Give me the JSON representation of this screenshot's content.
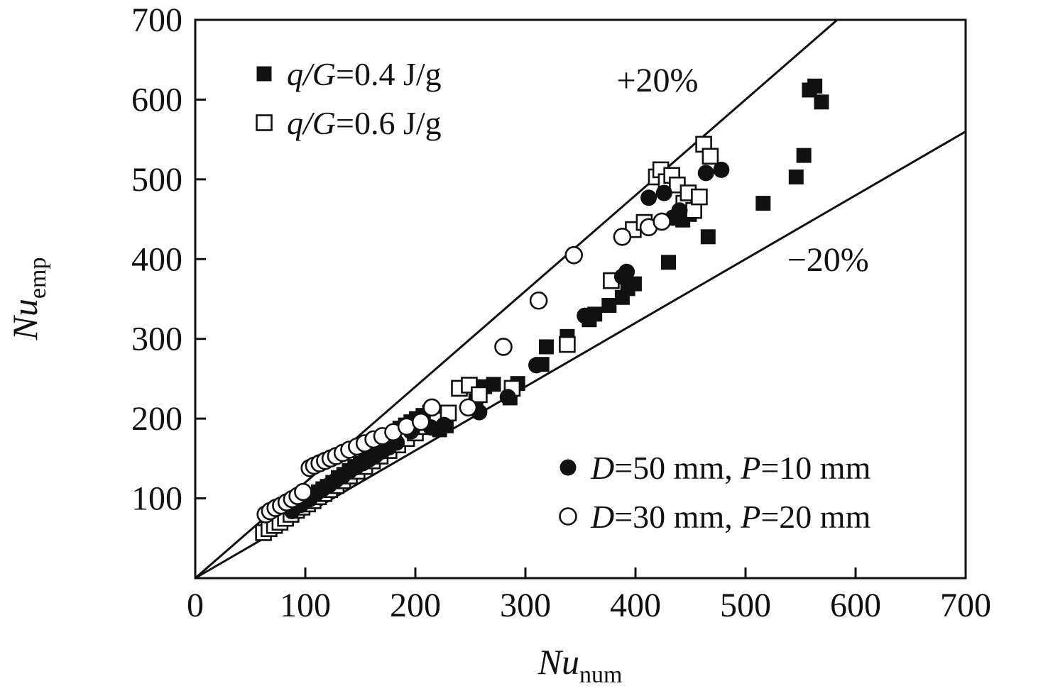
{
  "figure": {
    "background": "#ffffff"
  },
  "colors": {
    "ink": "#111111",
    "paper": "#ffffff"
  },
  "chart_data": {
    "type": "scatter",
    "title": "",
    "xlabel_main": "Nu",
    "xlabel_sub": "num",
    "ylabel_main": "Nu",
    "ylabel_sub": "emp",
    "xlim": [
      0,
      700
    ],
    "ylim": [
      0,
      700
    ],
    "xticks": [
      0,
      100,
      200,
      300,
      400,
      500,
      600,
      700
    ],
    "yticks": [
      100,
      200,
      300,
      400,
      500,
      600,
      700
    ],
    "grid": false,
    "frame": "box",
    "reference_lines": [
      {
        "label": "+20%",
        "slope": 1.2,
        "label_x": 420,
        "label_y": 610
      },
      {
        "label": "−20%",
        "slope": 0.8,
        "label_x": 575,
        "label_y": 385
      }
    ],
    "series": [
      {
        "name": "q/G=0.4 J/g",
        "marker": "square",
        "fill": "filled",
        "points": [
          [
            78,
            80
          ],
          [
            85,
            86
          ],
          [
            90,
            90
          ],
          [
            95,
            93
          ],
          [
            100,
            97
          ],
          [
            104,
            100
          ],
          [
            108,
            104
          ],
          [
            112,
            108
          ],
          [
            116,
            112
          ],
          [
            120,
            115
          ],
          [
            125,
            120
          ],
          [
            130,
            126
          ],
          [
            135,
            130
          ],
          [
            140,
            135
          ],
          [
            145,
            140
          ],
          [
            150,
            144
          ],
          [
            155,
            148
          ],
          [
            159,
            152
          ],
          [
            163,
            156
          ],
          [
            167,
            160
          ],
          [
            171,
            164
          ],
          [
            176,
            168
          ],
          [
            181,
            172
          ],
          [
            186,
            188
          ],
          [
            191,
            192
          ],
          [
            196,
            196
          ],
          [
            201,
            200
          ],
          [
            207,
            204
          ],
          [
            213,
            208
          ],
          [
            222,
            186
          ],
          [
            228,
            191
          ],
          [
            255,
            222
          ],
          [
            263,
            240
          ],
          [
            271,
            243
          ],
          [
            286,
            226
          ],
          [
            293,
            244
          ],
          [
            315,
            268
          ],
          [
            319,
            290
          ],
          [
            338,
            303
          ],
          [
            358,
            324
          ],
          [
            363,
            331
          ],
          [
            376,
            342
          ],
          [
            388,
            352
          ],
          [
            393,
            363
          ],
          [
            399,
            369
          ],
          [
            430,
            396
          ],
          [
            443,
            449
          ],
          [
            449,
            456
          ],
          [
            466,
            428
          ],
          [
            516,
            470
          ],
          [
            546,
            503
          ],
          [
            553,
            530
          ],
          [
            558,
            612
          ],
          [
            563,
            617
          ],
          [
            569,
            597
          ]
        ]
      },
      {
        "name": "q/G=0.6 J/g",
        "marker": "square",
        "fill": "open",
        "points": [
          [
            62,
            57
          ],
          [
            67,
            62
          ],
          [
            72,
            66
          ],
          [
            77,
            70
          ],
          [
            82,
            75
          ],
          [
            87,
            80
          ],
          [
            92,
            85
          ],
          [
            97,
            89
          ],
          [
            102,
            93
          ],
          [
            107,
            97
          ],
          [
            112,
            102
          ],
          [
            117,
            106
          ],
          [
            122,
            111
          ],
          [
            128,
            116
          ],
          [
            134,
            122
          ],
          [
            140,
            128
          ],
          [
            147,
            134
          ],
          [
            154,
            140
          ],
          [
            161,
            147
          ],
          [
            168,
            153
          ],
          [
            176,
            160
          ],
          [
            184,
            167
          ],
          [
            192,
            175
          ],
          [
            200,
            182
          ],
          [
            210,
            190
          ],
          [
            220,
            198
          ],
          [
            230,
            207
          ],
          [
            240,
            238
          ],
          [
            249,
            242
          ],
          [
            258,
            230
          ],
          [
            288,
            238
          ],
          [
            338,
            293
          ],
          [
            378,
            373
          ],
          [
            398,
            437
          ],
          [
            408,
            446
          ],
          [
            419,
            503
          ],
          [
            423,
            512
          ],
          [
            428,
            497
          ],
          [
            433,
            505
          ],
          [
            438,
            493
          ],
          [
            444,
            470
          ],
          [
            448,
            483
          ],
          [
            453,
            461
          ],
          [
            458,
            478
          ],
          [
            462,
            544
          ],
          [
            468,
            529
          ]
        ]
      },
      {
        "name": "D=50 mm, P=10 mm",
        "marker": "circle",
        "fill": "filled",
        "points": [
          [
            88,
            84
          ],
          [
            96,
            92
          ],
          [
            104,
            99
          ],
          [
            110,
            106
          ],
          [
            116,
            112
          ],
          [
            122,
            117
          ],
          [
            128,
            123
          ],
          [
            134,
            128
          ],
          [
            140,
            134
          ],
          [
            146,
            139
          ],
          [
            152,
            144
          ],
          [
            158,
            149
          ],
          [
            164,
            154
          ],
          [
            170,
            159
          ],
          [
            176,
            164
          ],
          [
            183,
            170
          ],
          [
            196,
            184
          ],
          [
            214,
            189
          ],
          [
            226,
            192
          ],
          [
            258,
            208
          ],
          [
            284,
            227
          ],
          [
            310,
            267
          ],
          [
            354,
            329
          ],
          [
            388,
            378
          ],
          [
            392,
            384
          ],
          [
            412,
            477
          ],
          [
            426,
            483
          ],
          [
            434,
            452
          ],
          [
            440,
            461
          ],
          [
            464,
            508
          ],
          [
            478,
            512
          ]
        ]
      },
      {
        "name": "D=30 mm, P=20 mm",
        "marker": "circle",
        "fill": "open",
        "points": [
          [
            64,
            80
          ],
          [
            68,
            84
          ],
          [
            73,
            88
          ],
          [
            78,
            91
          ],
          [
            83,
            95
          ],
          [
            88,
            99
          ],
          [
            93,
            103
          ],
          [
            98,
            108
          ],
          [
            104,
            138
          ],
          [
            108,
            141
          ],
          [
            113,
            144
          ],
          [
            118,
            147
          ],
          [
            123,
            150
          ],
          [
            128,
            153
          ],
          [
            134,
            157
          ],
          [
            140,
            161
          ],
          [
            147,
            165
          ],
          [
            154,
            169
          ],
          [
            162,
            174
          ],
          [
            170,
            178
          ],
          [
            180,
            183
          ],
          [
            192,
            190
          ],
          [
            205,
            196
          ],
          [
            215,
            214
          ],
          [
            248,
            214
          ],
          [
            280,
            290
          ],
          [
            312,
            348
          ],
          [
            344,
            405
          ],
          [
            388,
            428
          ],
          [
            412,
            440
          ],
          [
            424,
            447
          ]
        ]
      }
    ],
    "legends": [
      {
        "position": "top-left",
        "items": [
          {
            "series": 0,
            "label": "q/G=0.4 J/g",
            "label_parts": [
              {
                "text": "q/G",
                "italic": true
              },
              {
                "text": "=0.4 J/g",
                "italic": false
              }
            ]
          },
          {
            "series": 1,
            "label": "q/G=0.6 J/g",
            "label_parts": [
              {
                "text": "q/G",
                "italic": true
              },
              {
                "text": "=0.6 J/g",
                "italic": false
              }
            ]
          }
        ]
      },
      {
        "position": "bottom-right",
        "items": [
          {
            "series": 2,
            "label": "D=50 mm, P=10 mm",
            "label_parts": [
              {
                "text": "D",
                "italic": true
              },
              {
                "text": "=50 mm, ",
                "italic": false
              },
              {
                "text": "P",
                "italic": true
              },
              {
                "text": "=10 mm",
                "italic": false
              }
            ]
          },
          {
            "series": 3,
            "label": "D=30 mm, P=20 mm",
            "label_parts": [
              {
                "text": "D",
                "italic": true
              },
              {
                "text": "=30 mm, ",
                "italic": false
              },
              {
                "text": "P",
                "italic": true
              },
              {
                "text": "=20 mm",
                "italic": false
              }
            ]
          }
        ]
      }
    ]
  }
}
